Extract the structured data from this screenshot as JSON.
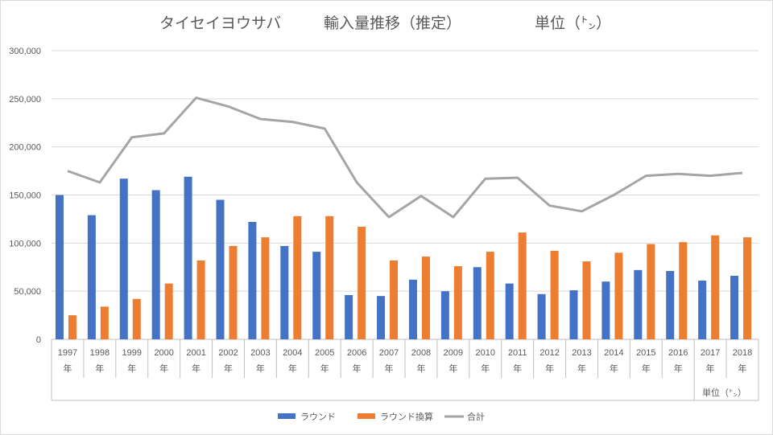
{
  "chart_data": {
    "type": "bar",
    "title": {
      "part1": "タイセイヨウサバ",
      "part2": "輸入量推移（推定）",
      "part3": "単位（㌧）"
    },
    "categories": [
      "1997年",
      "1998年",
      "1999年",
      "2000年",
      "2001年",
      "2002年",
      "2003年",
      "2004年",
      "2005年",
      "2006年",
      "2007年",
      "2008年",
      "2009年",
      "2010年",
      "2011年",
      "2012年",
      "2013年",
      "2014年",
      "2015年",
      "2016年",
      "2017年",
      "2018年"
    ],
    "x_year": [
      "1997",
      "1998",
      "1999",
      "2000",
      "2001",
      "2002",
      "2003",
      "2004",
      "2005",
      "2006",
      "2007",
      "2008",
      "2009",
      "2010",
      "2011",
      "2012",
      "2013",
      "2014",
      "2015",
      "2016",
      "2017",
      "2018"
    ],
    "x_suffix": "年",
    "series": [
      {
        "name": "ラウンド",
        "type": "bar",
        "color": "#4472c4",
        "values": [
          150000,
          129000,
          167000,
          155000,
          169000,
          145000,
          122000,
          97000,
          91000,
          46000,
          45000,
          62000,
          50000,
          75000,
          58000,
          47000,
          51000,
          60000,
          72000,
          71000,
          61000,
          66000
        ]
      },
      {
        "name": "ラウンド換算",
        "type": "bar",
        "color": "#ed7d31",
        "values": [
          25000,
          34000,
          42000,
          58000,
          82000,
          97000,
          106000,
          128000,
          128000,
          117000,
          82000,
          86000,
          76000,
          91000,
          111000,
          92000,
          81000,
          90000,
          99000,
          101000,
          108000,
          106000
        ]
      },
      {
        "name": "合計",
        "type": "line",
        "color": "#a5a5a5",
        "values": [
          175000,
          163000,
          210000,
          214000,
          251000,
          242000,
          229000,
          226000,
          219000,
          163000,
          127000,
          149000,
          127000,
          167000,
          168000,
          139000,
          133000,
          150000,
          170000,
          172000,
          170000,
          173000
        ]
      }
    ],
    "ylim": [
      0,
      300000
    ],
    "yticks": [
      "0",
      "50,000",
      "100,000",
      "150,000",
      "200,000",
      "250,000",
      "300,000"
    ],
    "ytick_values": [
      0,
      50000,
      100000,
      150000,
      200000,
      250000,
      300000
    ],
    "grid": true,
    "legend_position": "bottom",
    "unit_note": "単位（㌧）"
  }
}
